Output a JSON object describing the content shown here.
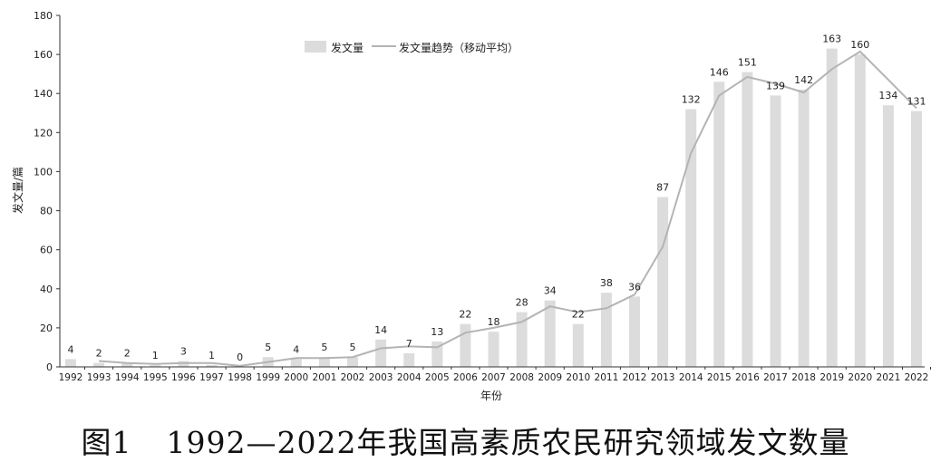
{
  "chart_data": {
    "type": "bar",
    "categories": [
      "1992",
      "1993",
      "1994",
      "1995",
      "1996",
      "1997",
      "1998",
      "1999",
      "2000",
      "2001",
      "2002",
      "2003",
      "2004",
      "2005",
      "2006",
      "2007",
      "2008",
      "2009",
      "2010",
      "2011",
      "2012",
      "2013",
      "2014",
      "2015",
      "2016",
      "2017",
      "2018",
      "2019",
      "2020",
      "2021",
      "2022"
    ],
    "series": [
      {
        "name": "发文量",
        "type": "bar",
        "values": [
          4,
          2,
          2,
          1,
          3,
          1,
          0,
          5,
          4,
          5,
          5,
          14,
          7,
          13,
          22,
          18,
          28,
          34,
          22,
          38,
          36,
          87,
          132,
          146,
          151,
          139,
          142,
          163,
          160,
          134,
          131
        ]
      },
      {
        "name": "发文量趋势（移动平均）",
        "type": "line",
        "values": [
          null,
          3,
          2,
          1.5,
          2,
          2,
          0.5,
          2.5,
          4.5,
          4.5,
          5,
          9.5,
          10.5,
          10,
          17.5,
          20,
          23,
          31,
          28,
          30,
          37,
          61.5,
          109.5,
          139,
          148.5,
          145,
          140.5,
          152.5,
          161.5,
          147,
          132.5
        ]
      }
    ],
    "data_labels": [
      "4",
      "2",
      "2",
      "1",
      "3",
      "1",
      "0",
      "5",
      "4",
      "5",
      "5",
      "14",
      "7",
      "13",
      "22",
      "18",
      "28",
      "34",
      "22",
      "38",
      "36",
      "87",
      "132",
      "146",
      "151",
      "139",
      "142",
      "163",
      "160",
      "134",
      "131"
    ],
    "yticks": [
      "0",
      "20",
      "40",
      "60",
      "80",
      "100",
      "120",
      "140",
      "160",
      "180"
    ],
    "ylim": [
      0,
      180
    ],
    "xlabel": "年份",
    "ylabel": "发文量/篇",
    "legend_position": "top-center",
    "grid": false,
    "colors": {
      "bar": "#dcdcdc",
      "line": "#b4b4b4",
      "axis": "#333333"
    }
  },
  "caption": {
    "figure_number": "图1",
    "title": "1992—2022年我国高素质农民研究领域发文数量"
  }
}
